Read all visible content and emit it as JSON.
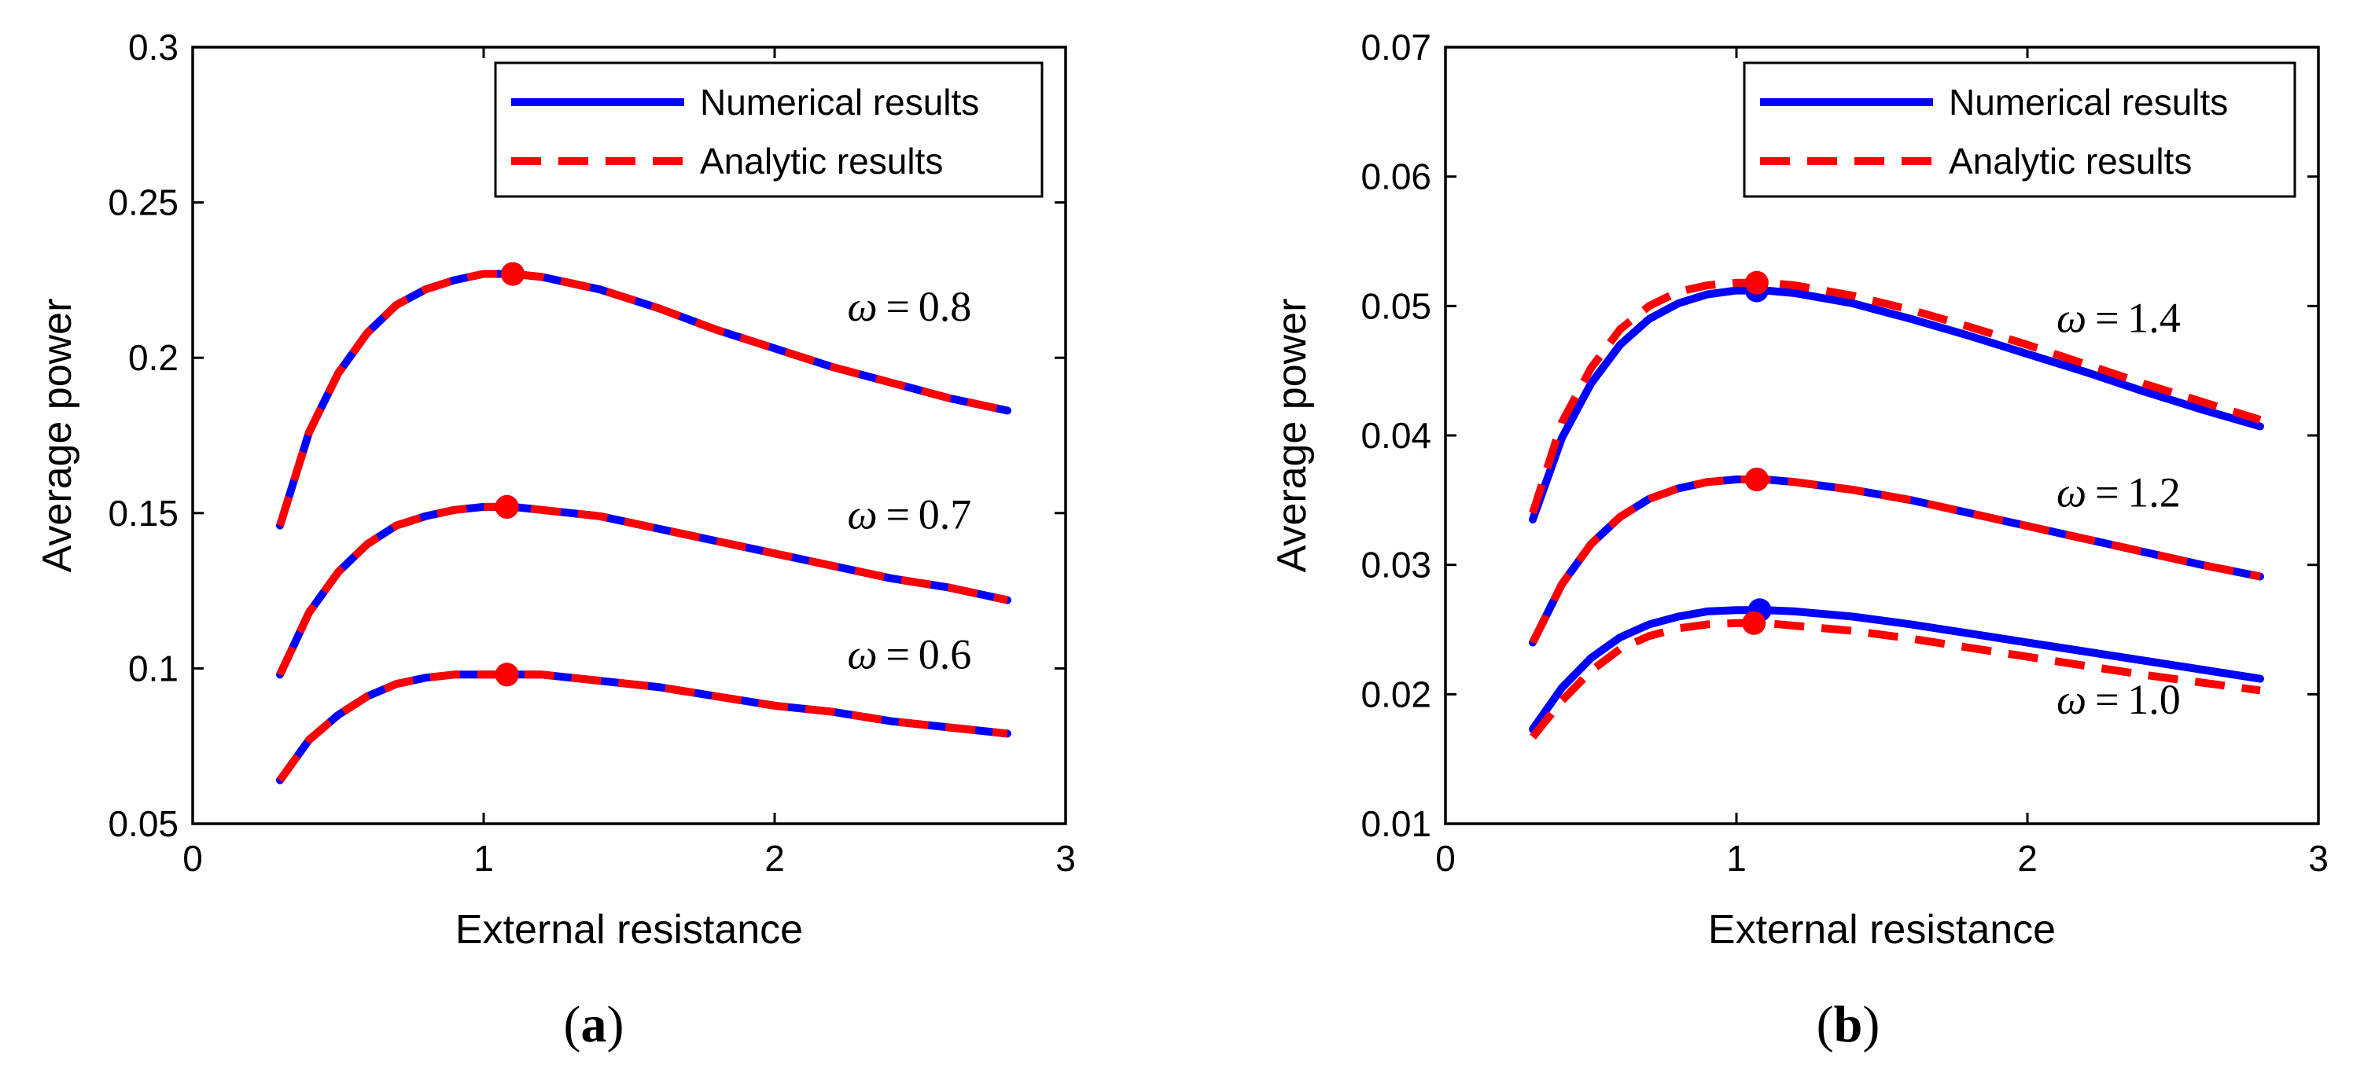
{
  "colors": {
    "numerical": "#0000ff",
    "analytic": "#ff0000",
    "axis": "#000000"
  },
  "chart_data": [
    {
      "type": "line",
      "panel_label": "a",
      "xlabel": "External resistance",
      "ylabel": "Average power",
      "xlim": [
        0,
        3
      ],
      "ylim": [
        0.05,
        0.3
      ],
      "xticks": [
        0,
        1,
        2,
        3
      ],
      "xtick_labels": [
        "0",
        "1",
        "2",
        "3"
      ],
      "yticks": [
        0.05,
        0.1,
        0.15,
        0.2,
        0.25,
        0.3
      ],
      "ytick_labels": [
        "0.05",
        "0.1",
        "0.15",
        "0.2",
        "0.25",
        "0.3"
      ],
      "legend": {
        "position": "top-right",
        "entries": [
          "Numerical results",
          "Analytic results"
        ]
      },
      "curves": [
        {
          "omega_label": "ω = 0.8",
          "omega_value": "0.8",
          "label_at": [
            2.25,
            0.212
          ],
          "numerical": {
            "x": [
              0.3,
              0.4,
              0.5,
              0.6,
              0.7,
              0.8,
              0.9,
              1.0,
              1.1,
              1.2,
              1.4,
              1.6,
              1.8,
              2.0,
              2.2,
              2.4,
              2.6,
              2.8
            ],
            "y": [
              0.146,
              0.176,
              0.195,
              0.208,
              0.217,
              0.222,
              0.225,
              0.227,
              0.227,
              0.226,
              0.222,
              0.216,
              0.209,
              0.203,
              0.197,
              0.192,
              0.187,
              0.183
            ]
          },
          "analytic": {
            "x": [
              0.3,
              0.4,
              0.5,
              0.6,
              0.7,
              0.8,
              0.9,
              1.0,
              1.1,
              1.2,
              1.4,
              1.6,
              1.8,
              2.0,
              2.2,
              2.4,
              2.6,
              2.8
            ],
            "y": [
              0.146,
              0.176,
              0.195,
              0.208,
              0.217,
              0.222,
              0.225,
              0.227,
              0.227,
              0.226,
              0.222,
              0.216,
              0.209,
              0.203,
              0.197,
              0.192,
              0.187,
              0.183
            ]
          },
          "numerical_max": [
            1.1,
            0.227
          ],
          "analytic_max": [
            1.1,
            0.227
          ]
        },
        {
          "omega_label": "ω = 0.7",
          "omega_value": "0.7",
          "label_at": [
            2.25,
            0.145
          ],
          "numerical": {
            "x": [
              0.3,
              0.4,
              0.5,
              0.6,
              0.7,
              0.8,
              0.9,
              1.0,
              1.1,
              1.2,
              1.4,
              1.6,
              1.8,
              2.0,
              2.2,
              2.4,
              2.6,
              2.8
            ],
            "y": [
              0.098,
              0.118,
              0.131,
              0.14,
              0.146,
              0.149,
              0.151,
              0.152,
              0.152,
              0.151,
              0.149,
              0.145,
              0.141,
              0.137,
              0.133,
              0.129,
              0.126,
              0.122
            ]
          },
          "analytic": {
            "x": [
              0.3,
              0.4,
              0.5,
              0.6,
              0.7,
              0.8,
              0.9,
              1.0,
              1.1,
              1.2,
              1.4,
              1.6,
              1.8,
              2.0,
              2.2,
              2.4,
              2.6,
              2.8
            ],
            "y": [
              0.098,
              0.118,
              0.131,
              0.14,
              0.146,
              0.149,
              0.151,
              0.152,
              0.152,
              0.151,
              0.149,
              0.145,
              0.141,
              0.137,
              0.133,
              0.129,
              0.126,
              0.122
            ]
          },
          "numerical_max": [
            1.08,
            0.152
          ],
          "analytic_max": [
            1.08,
            0.152
          ]
        },
        {
          "omega_label": "ω = 0.6",
          "omega_value": "0.6",
          "label_at": [
            2.25,
            0.1
          ],
          "numerical": {
            "x": [
              0.3,
              0.4,
              0.5,
              0.6,
              0.7,
              0.8,
              0.9,
              1.0,
              1.1,
              1.2,
              1.4,
              1.6,
              1.8,
              2.0,
              2.2,
              2.4,
              2.6,
              2.8
            ],
            "y": [
              0.064,
              0.077,
              0.085,
              0.091,
              0.095,
              0.097,
              0.098,
              0.098,
              0.098,
              0.098,
              0.096,
              0.094,
              0.091,
              0.088,
              0.086,
              0.083,
              0.081,
              0.079
            ]
          },
          "analytic": {
            "x": [
              0.3,
              0.4,
              0.5,
              0.6,
              0.7,
              0.8,
              0.9,
              1.0,
              1.1,
              1.2,
              1.4,
              1.6,
              1.8,
              2.0,
              2.2,
              2.4,
              2.6,
              2.8
            ],
            "y": [
              0.064,
              0.077,
              0.085,
              0.091,
              0.095,
              0.097,
              0.098,
              0.098,
              0.098,
              0.098,
              0.096,
              0.094,
              0.091,
              0.088,
              0.086,
              0.083,
              0.081,
              0.079
            ]
          },
          "numerical_max": [
            1.08,
            0.098
          ],
          "analytic_max": [
            1.08,
            0.098
          ]
        }
      ]
    },
    {
      "type": "line",
      "panel_label": "b",
      "xlabel": "External resistance",
      "ylabel": "Average power",
      "xlim": [
        0,
        3
      ],
      "ylim": [
        0.01,
        0.07
      ],
      "xticks": [
        0,
        1,
        2,
        3
      ],
      "xtick_labels": [
        "0",
        "1",
        "2",
        "3"
      ],
      "yticks": [
        0.01,
        0.02,
        0.03,
        0.04,
        0.05,
        0.06,
        0.07
      ],
      "ytick_labels": [
        "0.01",
        "0.02",
        "0.03",
        "0.04",
        "0.05",
        "0.06",
        "0.07"
      ],
      "legend": {
        "position": "top-right",
        "entries": [
          "Numerical results",
          "Analytic results"
        ]
      },
      "curves": [
        {
          "omega_label": "ω = 1.4",
          "omega_value": "1.4",
          "label_at": [
            2.1,
            0.048
          ],
          "numerical": {
            "x": [
              0.3,
              0.4,
              0.5,
              0.6,
              0.7,
              0.8,
              0.9,
              1.0,
              1.1,
              1.2,
              1.4,
              1.6,
              1.8,
              2.0,
              2.2,
              2.4,
              2.6,
              2.8
            ],
            "y": [
              0.0335,
              0.0398,
              0.044,
              0.047,
              0.049,
              0.0502,
              0.0509,
              0.0512,
              0.0512,
              0.051,
              0.0502,
              0.049,
              0.0477,
              0.0463,
              0.0449,
              0.0434,
              0.042,
              0.0407
            ]
          },
          "analytic": {
            "x": [
              0.3,
              0.4,
              0.5,
              0.6,
              0.7,
              0.8,
              0.9,
              1.0,
              1.1,
              1.2,
              1.4,
              1.6,
              1.8,
              2.0,
              2.2,
              2.4,
              2.6,
              2.8
            ],
            "y": [
              0.034,
              0.041,
              0.0452,
              0.0482,
              0.05,
              0.0511,
              0.0516,
              0.0518,
              0.0518,
              0.0516,
              0.0508,
              0.0497,
              0.0484,
              0.047,
              0.0455,
              0.044,
              0.0426,
              0.0412
            ]
          },
          "numerical_max": [
            1.07,
            0.0512
          ],
          "analytic_max": [
            1.07,
            0.0518
          ]
        },
        {
          "omega_label": "ω = 1.2",
          "omega_value": "1.2",
          "label_at": [
            2.1,
            0.0345
          ],
          "numerical": {
            "x": [
              0.3,
              0.4,
              0.5,
              0.6,
              0.7,
              0.8,
              0.9,
              1.0,
              1.1,
              1.2,
              1.4,
              1.6,
              1.8,
              2.0,
              2.2,
              2.4,
              2.6,
              2.8
            ],
            "y": [
              0.024,
              0.0285,
              0.0316,
              0.0337,
              0.0351,
              0.0359,
              0.0364,
              0.0366,
              0.0366,
              0.0364,
              0.0358,
              0.035,
              0.034,
              0.033,
              0.032,
              0.031,
              0.03,
              0.0291
            ]
          },
          "analytic": {
            "x": [
              0.3,
              0.4,
              0.5,
              0.6,
              0.7,
              0.8,
              0.9,
              1.0,
              1.1,
              1.2,
              1.4,
              1.6,
              1.8,
              2.0,
              2.2,
              2.4,
              2.6,
              2.8
            ],
            "y": [
              0.024,
              0.0285,
              0.0316,
              0.0337,
              0.0351,
              0.0359,
              0.0364,
              0.0366,
              0.0366,
              0.0364,
              0.0358,
              0.035,
              0.034,
              0.033,
              0.032,
              0.031,
              0.03,
              0.0291
            ]
          },
          "numerical_max": [
            1.07,
            0.0366
          ],
          "analytic_max": [
            1.07,
            0.0366
          ]
        },
        {
          "omega_label": "ω = 1.0",
          "omega_value": "1.0",
          "label_at": [
            2.1,
            0.0185
          ],
          "numerical": {
            "x": [
              0.3,
              0.4,
              0.5,
              0.6,
              0.7,
              0.8,
              0.9,
              1.0,
              1.1,
              1.2,
              1.4,
              1.6,
              1.8,
              2.0,
              2.2,
              2.4,
              2.6,
              2.8
            ],
            "y": [
              0.0173,
              0.0205,
              0.0228,
              0.0244,
              0.0254,
              0.026,
              0.0264,
              0.0265,
              0.0265,
              0.0264,
              0.026,
              0.0254,
              0.0247,
              0.024,
              0.0233,
              0.0226,
              0.0219,
              0.0212
            ]
          },
          "analytic": {
            "x": [
              0.3,
              0.4,
              0.5,
              0.6,
              0.7,
              0.8,
              0.9,
              1.0,
              1.1,
              1.2,
              1.4,
              1.6,
              1.8,
              2.0,
              2.2,
              2.4,
              2.6,
              2.8
            ],
            "y": [
              0.0167,
              0.0195,
              0.0218,
              0.0235,
              0.0245,
              0.0251,
              0.0254,
              0.0255,
              0.0255,
              0.0253,
              0.0249,
              0.0243,
              0.0236,
              0.0229,
              0.0222,
              0.0215,
              0.0209,
              0.0203
            ]
          },
          "numerical_max": [
            1.08,
            0.0265
          ],
          "analytic_max": [
            1.06,
            0.0255
          ]
        }
      ]
    }
  ]
}
